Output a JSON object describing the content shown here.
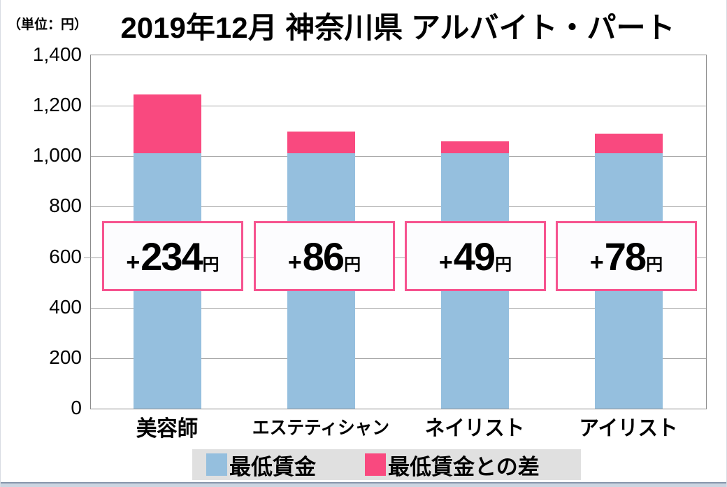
{
  "title": "2019年12月 神奈川県 アルバイト・パート",
  "unit_label": "（単位：円）",
  "colors": {
    "bar_blue": "#95bfde",
    "bar_pink": "#f9497f",
    "box_border": "#f6538f",
    "legend_bg": "#e0e0e0",
    "grid": "#a6a6a6"
  },
  "chart_data": {
    "type": "bar",
    "stacked": true,
    "title": "2019年12月 神奈川県 アルバイト・パート",
    "unit": "円",
    "categories": [
      "美容師",
      "エステティシャン",
      "ネイリスト",
      "アイリスト"
    ],
    "series": [
      {
        "name": "最低賃金",
        "color": "#95bfde",
        "values": [
          1011,
          1011,
          1011,
          1011
        ]
      },
      {
        "name": "最低賃金との差",
        "color": "#f9497f",
        "values": [
          234,
          86,
          49,
          78
        ]
      }
    ],
    "totals": [
      1245,
      1097,
      1060,
      1089
    ],
    "annotations": [
      {
        "plus": "+",
        "value": "234",
        "unit": "円"
      },
      {
        "plus": "+",
        "value": "86",
        "unit": "円"
      },
      {
        "plus": "+",
        "value": "49",
        "unit": "円"
      },
      {
        "plus": "+",
        "value": "78",
        "unit": "円"
      }
    ],
    "ylim": [
      0,
      1400
    ],
    "y_tick_step": 200,
    "y_ticks": [
      "1,400",
      "1,200",
      "1,000",
      "800",
      "600",
      "400",
      "200",
      "0"
    ],
    "grid": true,
    "legend_position": "bottom"
  }
}
